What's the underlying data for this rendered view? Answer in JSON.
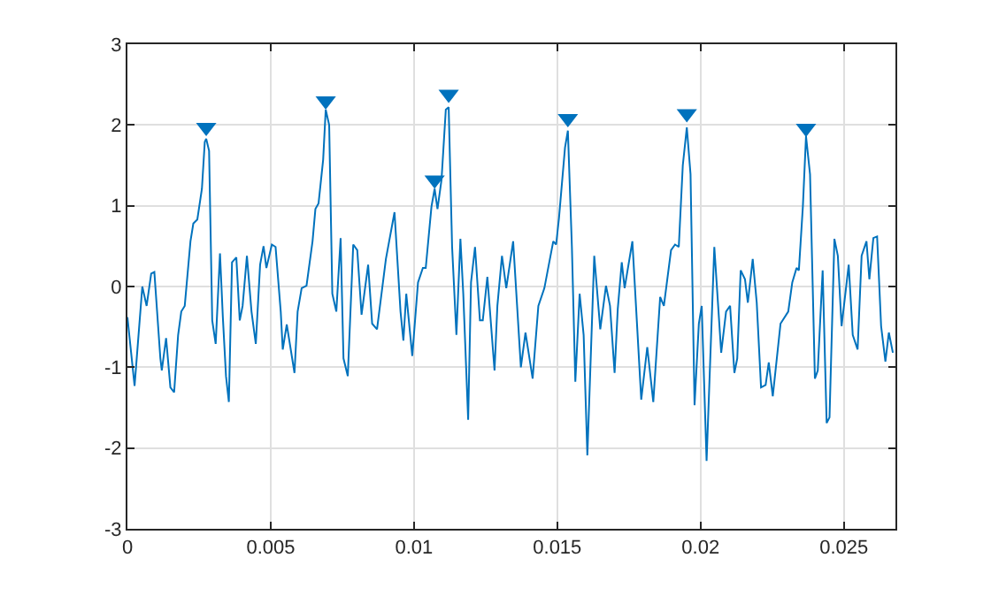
{
  "chart_data": {
    "type": "line",
    "xlim": [
      0,
      0.0268
    ],
    "ylim": [
      -3,
      3
    ],
    "xticks": [
      0,
      0.005,
      0.01,
      0.015,
      0.02,
      0.025
    ],
    "yticks": [
      -3,
      -2,
      -1,
      0,
      1,
      2,
      3
    ],
    "grid": true,
    "series": [
      {
        "color": "#0072bd",
        "x": [
          0,
          0.00025,
          0.00052,
          0.00067,
          0.00083,
          0.00094,
          0.00115,
          0.0012,
          0.00135,
          0.0015,
          0.00163,
          0.00177,
          0.00188,
          0.002,
          0.0022,
          0.0023,
          0.00244,
          0.0026,
          0.0027,
          0.00275,
          0.00285,
          0.00296,
          0.00308,
          0.00323,
          0.00333,
          0.00344,
          0.00354,
          0.00365,
          0.0038,
          0.00392,
          0.00402,
          0.00417,
          0.00433,
          0.00448,
          0.00463,
          0.00475,
          0.00485,
          0.00504,
          0.00517,
          0.00535,
          0.00542,
          0.00556,
          0.00583,
          0.00594,
          0.00608,
          0.00625,
          0.00646,
          0.00656,
          0.00667,
          0.00683,
          0.00692,
          0.00704,
          0.00715,
          0.00729,
          0.00744,
          0.00754,
          0.00769,
          0.00788,
          0.00802,
          0.00817,
          0.0084,
          0.00854,
          0.00871,
          0.00902,
          0.00932,
          0.00953,
          0.00963,
          0.00973,
          0.00994,
          0.01014,
          0.01031,
          0.01041,
          0.01061,
          0.01072,
          0.01082,
          0.01096,
          0.01111,
          0.01121,
          0.01133,
          0.01148,
          0.01162,
          0.01172,
          0.01189,
          0.01199,
          0.01213,
          0.0123,
          0.0124,
          0.01256,
          0.01281,
          0.01291,
          0.01307,
          0.01322,
          0.01346,
          0.01373,
          0.01389,
          0.01414,
          0.01434,
          0.01455,
          0.01486,
          0.01496,
          0.01506,
          0.01527,
          0.01537,
          0.01551,
          0.01563,
          0.01578,
          0.01592,
          0.01605,
          0.01629,
          0.0165,
          0.0167,
          0.01684,
          0.017,
          0.01711,
          0.01725,
          0.01735,
          0.01762,
          0.01793,
          0.01814,
          0.01835,
          0.01859,
          0.01872,
          0.01897,
          0.01911,
          0.01924,
          0.01938,
          0.01952,
          0.01965,
          0.01979,
          0.01994,
          0.02004,
          0.02021,
          0.02048,
          0.02072,
          0.02089,
          0.02103,
          0.02118,
          0.02128,
          0.0214,
          0.02155,
          0.02165,
          0.02182,
          0.02196,
          0.02211,
          0.02227,
          0.02238,
          0.02252,
          0.02279,
          0.02306,
          0.0232,
          0.02335,
          0.02343,
          0.02357,
          0.02368,
          0.02382,
          0.02399,
          0.02409,
          0.02426,
          0.0244,
          0.0245,
          0.02467,
          0.02479,
          0.02492,
          0.02517,
          0.02531,
          0.02548,
          0.02562,
          0.02579,
          0.02589,
          0.02603,
          0.02616,
          0.0263,
          0.02645,
          0.02657,
          0.02671
        ],
        "values": [
          -0.38,
          -1.23,
          0,
          -0.24,
          0.16,
          0.18,
          -0.89,
          -1.04,
          -0.64,
          -1.25,
          -1.31,
          -0.6,
          -0.31,
          -0.24,
          0.56,
          0.78,
          0.83,
          1.21,
          1.79,
          1.83,
          1.68,
          -0.42,
          -0.71,
          0.41,
          -0.38,
          -1.11,
          -1.43,
          0.3,
          0.36,
          -0.42,
          -0.24,
          0.38,
          -0.31,
          -0.71,
          0.27,
          0.5,
          0.23,
          0.52,
          0.49,
          -0.31,
          -0.78,
          -0.47,
          -1.07,
          -0.31,
          -0.02,
          0.01,
          0.56,
          0.96,
          1.03,
          1.57,
          2.19,
          2,
          -0.09,
          -0.31,
          0.6,
          -0.89,
          -1.11,
          0.52,
          0.45,
          -0.35,
          0.27,
          -0.46,
          -0.53,
          0.34,
          0.92,
          -0.31,
          -0.67,
          -0.09,
          -0.86,
          0.05,
          0.23,
          0.23,
          0.99,
          1.21,
          0.96,
          1.32,
          2.19,
          2.22,
          0.49,
          -0.6,
          0.59,
          -0.09,
          -1.65,
          0.05,
          0.49,
          -0.42,
          -0.42,
          0.12,
          -1.04,
          -0.24,
          0.38,
          -0.02,
          0.56,
          -1,
          -0.57,
          -1.14,
          -0.24,
          -0.02,
          0.56,
          0.52,
          0.85,
          1.72,
          1.93,
          0.49,
          -1.18,
          -0.09,
          -0.6,
          -2.09,
          0.38,
          -0.53,
          0.01,
          -0.24,
          -1.07,
          -0.28,
          0.3,
          -0.02,
          0.56,
          -1.4,
          -0.75,
          -1.43,
          -0.13,
          -0.24,
          0.45,
          0.52,
          0.49,
          1.5,
          1.97,
          1.39,
          -1.47,
          -0.46,
          -0.24,
          -2.16,
          0.49,
          -0.82,
          -0.31,
          -0.24,
          -1.07,
          -0.89,
          0.2,
          0.09,
          -0.2,
          0.34,
          -0.2,
          -1.25,
          -1.22,
          -0.94,
          -1.36,
          -0.46,
          -0.31,
          0.05,
          0.23,
          0.2,
          0.99,
          1.86,
          1.39,
          -1.14,
          -1.04,
          0.2,
          -1.69,
          -1.62,
          0.59,
          0.38,
          -0.49,
          0.27,
          -0.6,
          -0.78,
          0.38,
          0.56,
          0.09,
          0.6,
          0.62,
          -0.49,
          -0.93,
          -0.57,
          -0.82
        ]
      },
      {
        "type": "scatter",
        "marker": "triangle",
        "color": "#0072bd",
        "x": [
          0.00275,
          0.00692,
          0.01072,
          0.01121,
          0.01537,
          0.01952,
          0.02368
        ],
        "values": [
          1.97,
          2.3,
          1.32,
          2.38,
          2.08,
          2.14,
          1.96
        ]
      }
    ]
  }
}
